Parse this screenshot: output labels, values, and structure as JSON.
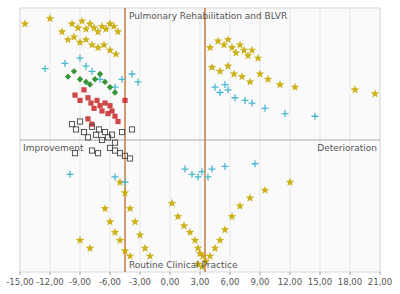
{
  "chart_data": {
    "type": "scatter",
    "annotations": {
      "top": "Pulmonary Rehabilitation and BLVR",
      "bottom": "Routine Clinical Practice"
    },
    "xlabel": {
      "left": "Improvement",
      "right": "Deterioration"
    },
    "xlim": [
      -15,
      21
    ],
    "ylim": [
      -1.0,
      1.0
    ],
    "xticks": [
      {
        "value": -15.0,
        "label": "-15,00"
      },
      {
        "value": -12.0,
        "label": "-12,00"
      },
      {
        "value": -9.0,
        "label": "-9,00"
      },
      {
        "value": -6.0,
        "label": "-6,00"
      },
      {
        "value": -3.0,
        "label": "-3,00"
      },
      {
        "value": 0.0,
        "label": "0,00"
      },
      {
        "value": 3.0,
        "label": "3,00"
      },
      {
        "value": 6.0,
        "label": "6,00"
      },
      {
        "value": 9.0,
        "label": "9,00"
      },
      {
        "value": 12.0,
        "label": "12,00"
      },
      {
        "value": 15.0,
        "label": "15,00"
      },
      {
        "value": 18.0,
        "label": "18,00"
      },
      {
        "value": 21.0,
        "label": "21,00"
      }
    ],
    "tick_labels": "x",
    "grid": true,
    "vlines": {
      "values": [
        -4.5,
        3.5
      ],
      "color": "#c87941"
    },
    "hlines": {
      "values": [
        0
      ],
      "color": "#aaaaaa"
    },
    "series": [
      {
        "color": "#c8a800",
        "marker": "star",
        "x": [
          -14.5,
          -12.0,
          -10.8,
          -9.8,
          -9.2,
          -8.8,
          -8.4,
          -8.0,
          -7.6,
          -7.2,
          -6.8,
          -6.4,
          -6.0,
          -5.6,
          -5.2,
          -10.2,
          -9.6,
          -9.0,
          -8.4,
          -7.8,
          -7.2,
          -6.6,
          -6.0,
          -5.4
        ],
        "values": [
          0.88,
          0.92,
          0.82,
          0.88,
          0.85,
          0.9,
          0.84,
          0.88,
          0.85,
          0.82,
          0.86,
          0.84,
          0.88,
          0.86,
          0.82,
          0.76,
          0.78,
          0.74,
          0.76,
          0.72,
          0.7,
          0.72,
          0.68,
          0.65
        ]
      },
      {
        "color": "#c8a800",
        "marker": "star",
        "x": [
          4.0,
          4.8,
          5.4,
          5.8,
          6.2,
          6.6,
          7.0,
          7.4,
          7.8,
          8.2,
          8.8,
          4.2,
          5.0,
          5.8,
          6.4,
          7.2,
          8.0,
          9.0,
          9.8,
          11.0,
          12.5,
          18.5,
          20.5
        ],
        "values": [
          0.7,
          0.75,
          0.72,
          0.76,
          0.7,
          0.66,
          0.72,
          0.68,
          0.64,
          0.68,
          0.62,
          0.55,
          0.52,
          0.56,
          0.5,
          0.48,
          0.44,
          0.5,
          0.46,
          0.42,
          0.4,
          0.38,
          0.35
        ]
      },
      {
        "color": "#c8a800",
        "marker": "star",
        "x": [
          -5.0,
          -4.5,
          -4.0,
          -3.5,
          -3.0,
          -2.5,
          -2.0,
          -6.5,
          -6.0,
          -5.5,
          -5.0,
          -4.5,
          -4.0,
          -9.0,
          -8.0,
          0.2,
          0.8,
          1.4,
          2.0,
          2.5,
          2.8,
          3.0,
          3.3,
          3.6,
          4.0,
          4.5,
          5.0,
          5.5,
          6.2,
          7.0,
          8.0,
          9.5,
          12.0,
          2.8,
          3.2
        ],
        "values": [
          -0.32,
          -0.4,
          -0.52,
          -0.62,
          -0.72,
          -0.82,
          -0.88,
          -0.52,
          -0.62,
          -0.7,
          -0.76,
          -0.84,
          -0.88,
          -0.76,
          -0.82,
          -0.48,
          -0.58,
          -0.65,
          -0.7,
          -0.76,
          -0.82,
          -0.86,
          -0.88,
          -0.92,
          -0.88,
          -0.82,
          -0.76,
          -0.68,
          -0.58,
          -0.5,
          -0.44,
          -0.38,
          -0.32,
          -0.94,
          -0.96
        ]
      },
      {
        "color": "#4cb8d0",
        "marker": "plus",
        "x": [
          -12.5,
          -10.5,
          -9.0,
          -8.4,
          -7.8,
          -7.0,
          -5.5,
          -4.8,
          -3.8,
          -3.2,
          4.5,
          5.0,
          5.5,
          5.8,
          6.5,
          7.5,
          8.2,
          9.5,
          11.5,
          14.5,
          -10.0,
          -5.5,
          -4.5,
          1.5,
          2.2,
          2.8,
          3.2,
          3.8,
          4.2,
          5.5,
          8.5
        ],
        "values": [
          0.54,
          0.58,
          0.62,
          0.56,
          0.52,
          0.46,
          0.4,
          0.46,
          0.5,
          0.44,
          0.4,
          0.36,
          0.42,
          0.38,
          0.32,
          0.3,
          0.28,
          0.24,
          0.2,
          0.18,
          -0.26,
          -0.28,
          -0.32,
          -0.22,
          -0.26,
          -0.28,
          -0.24,
          -0.28,
          -0.22,
          -0.2,
          -0.18
        ]
      },
      {
        "color": "#228B22",
        "marker": "diamond",
        "x": [
          -10.2,
          -9.6,
          -9.0,
          -8.4,
          -8.0,
          -7.5,
          -7.0,
          -6.5,
          -6.0,
          -5.5
        ],
        "values": [
          0.48,
          0.52,
          0.46,
          0.44,
          0.42,
          0.46,
          0.5,
          0.44,
          0.4,
          0.36
        ]
      },
      {
        "color": "#cc3333",
        "marker": "square",
        "x": [
          -9.5,
          -9.0,
          -8.6,
          -8.2,
          -7.9,
          -7.6,
          -7.3,
          -7.0,
          -6.8,
          -6.5,
          -6.2,
          -6.0,
          -5.8,
          -5.5,
          -5.2,
          -8.2,
          -7.8,
          -4.5
        ],
        "values": [
          0.34,
          0.3,
          0.38,
          0.32,
          0.28,
          0.24,
          0.3,
          0.26,
          0.22,
          0.28,
          0.2,
          0.26,
          0.22,
          0.18,
          0.14,
          0.16,
          0.12,
          0.3
        ]
      },
      {
        "color": "#444444",
        "marker": "square-open",
        "x": [
          -9.8,
          -9.4,
          -9.0,
          -8.6,
          -8.2,
          -7.8,
          -7.4,
          -7.1,
          -6.8,
          -6.5,
          -6.2,
          -5.8,
          -5.5,
          -4.8,
          -3.8,
          -9.5,
          -7.8,
          -7.2,
          -6.0,
          -5.5,
          -5.0,
          -4.5,
          -4.0
        ],
        "values": [
          0.12,
          0.08,
          0.14,
          0.06,
          0.02,
          0.1,
          0.04,
          0.08,
          0.0,
          0.06,
          0.02,
          0.04,
          -0.02,
          0.06,
          0.08,
          -0.1,
          -0.08,
          -0.1,
          -0.06,
          -0.08,
          -0.1,
          -0.12,
          -0.14
        ]
      }
    ]
  }
}
